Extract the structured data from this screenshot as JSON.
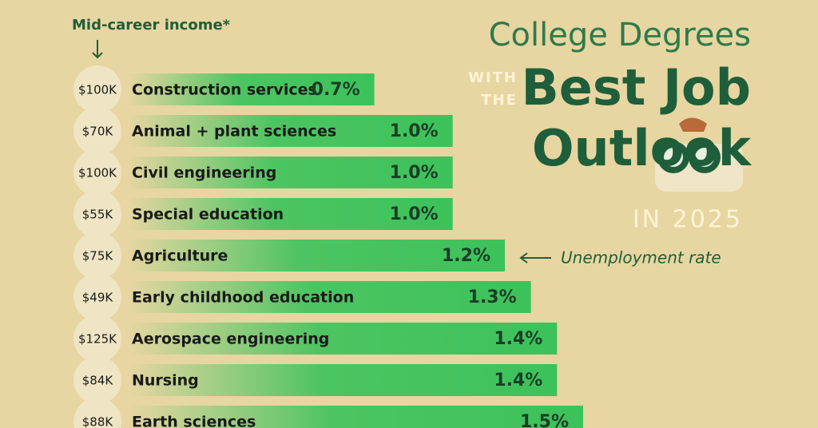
{
  "chart_data": {
    "type": "bar",
    "title": [
      "College Degrees",
      "WITH",
      "THE",
      "Best Job",
      "Outlook",
      "IN 2025"
    ],
    "income_title": "Mid-career income*",
    "annotation": "Unemployment rate",
    "categories": [
      "Construction services",
      "Animal + plant sciences",
      "Civil engineering",
      "Special education",
      "Agriculture",
      "Early childhood education",
      "Aerospace engineering",
      "Nursing",
      "Earth sciences"
    ],
    "income_labels": [
      "$100K",
      "$70K",
      "$100K",
      "$55K",
      "$75K",
      "$49K",
      "$125K",
      "$84K",
      "$88K"
    ],
    "values": [
      0.7,
      1.0,
      1.0,
      1.0,
      1.2,
      1.3,
      1.4,
      1.4,
      1.5
    ],
    "value_labels": [
      "0.7%",
      "1.0%",
      "1.0%",
      "1.0%",
      "1.2%",
      "1.3%",
      "1.4%",
      "1.4%",
      "1.5%"
    ],
    "color": "#3cc25a"
  }
}
